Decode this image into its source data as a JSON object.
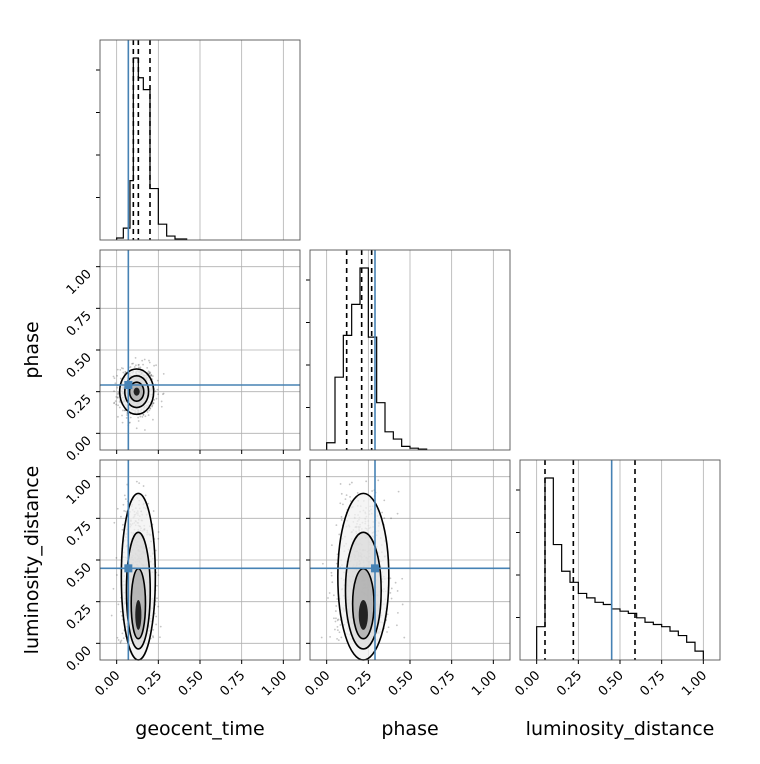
{
  "chart_data": {
    "type": "corner",
    "parameters": [
      "geocent_time",
      "phase",
      "luminosity_distance"
    ],
    "truths": {
      "geocent_time": 0.07,
      "phase": 0.29,
      "luminosity_distance": 0.45
    },
    "tick_labels": [
      "0.00",
      "0.25",
      "0.50",
      "0.75",
      "1.00"
    ],
    "range": [
      -0.1,
      1.1
    ],
    "grid": true,
    "colors": {
      "truth": "#4682b4",
      "hist": "#000000",
      "grid": "#b0b0b0",
      "points": "#555555"
    },
    "histograms": [
      {
        "parameter": "geocent_time",
        "bin_edges": [
          -0.0,
          0.04,
          0.08,
          0.1,
          0.13,
          0.16,
          0.2,
          0.25,
          0.3,
          0.35,
          0.42
        ],
        "counts": [
          0.01,
          0.06,
          0.3,
          0.92,
          0.82,
          0.76,
          0.26,
          0.08,
          0.02,
          0.005
        ],
        "quantile_lines": [
          0.1,
          0.13,
          0.2
        ]
      },
      {
        "parameter": "phase",
        "bin_edges": [
          0.0,
          0.05,
          0.1,
          0.15,
          0.2,
          0.25,
          0.3,
          0.35,
          0.4,
          0.45,
          0.5,
          0.55,
          0.6
        ],
        "counts": [
          0.04,
          0.4,
          0.63,
          0.8,
          1.0,
          0.62,
          0.26,
          0.1,
          0.06,
          0.02,
          0.01,
          0.005
        ],
        "quantile_lines": [
          0.12,
          0.21,
          0.27
        ]
      },
      {
        "parameter": "luminosity_distance",
        "bin_edges": [
          0.0,
          0.05,
          0.1,
          0.15,
          0.2,
          0.25,
          0.3,
          0.35,
          0.4,
          0.45,
          0.5,
          0.55,
          0.6,
          0.65,
          0.7,
          0.75,
          0.8,
          0.85,
          0.9,
          0.95,
          1.0
        ],
        "counts": [
          0.15,
          0.82,
          0.52,
          0.4,
          0.35,
          0.3,
          0.28,
          0.26,
          0.25,
          0.23,
          0.22,
          0.21,
          0.19,
          0.17,
          0.16,
          0.15,
          0.13,
          0.11,
          0.08,
          0.04
        ],
        "quantile_lines": [
          0.05,
          0.22,
          0.59
        ]
      }
    ],
    "density_2d": [
      {
        "x": "geocent_time",
        "y": "phase",
        "center": [
          0.12,
          0.25
        ],
        "spread": [
          0.06,
          0.08
        ]
      },
      {
        "x": "geocent_time",
        "y": "luminosity_distance",
        "center": [
          0.13,
          0.35
        ],
        "spread": [
          0.06,
          0.28
        ]
      },
      {
        "x": "phase",
        "y": "luminosity_distance",
        "center": [
          0.22,
          0.35
        ],
        "spread": [
          0.09,
          0.28
        ]
      }
    ]
  }
}
